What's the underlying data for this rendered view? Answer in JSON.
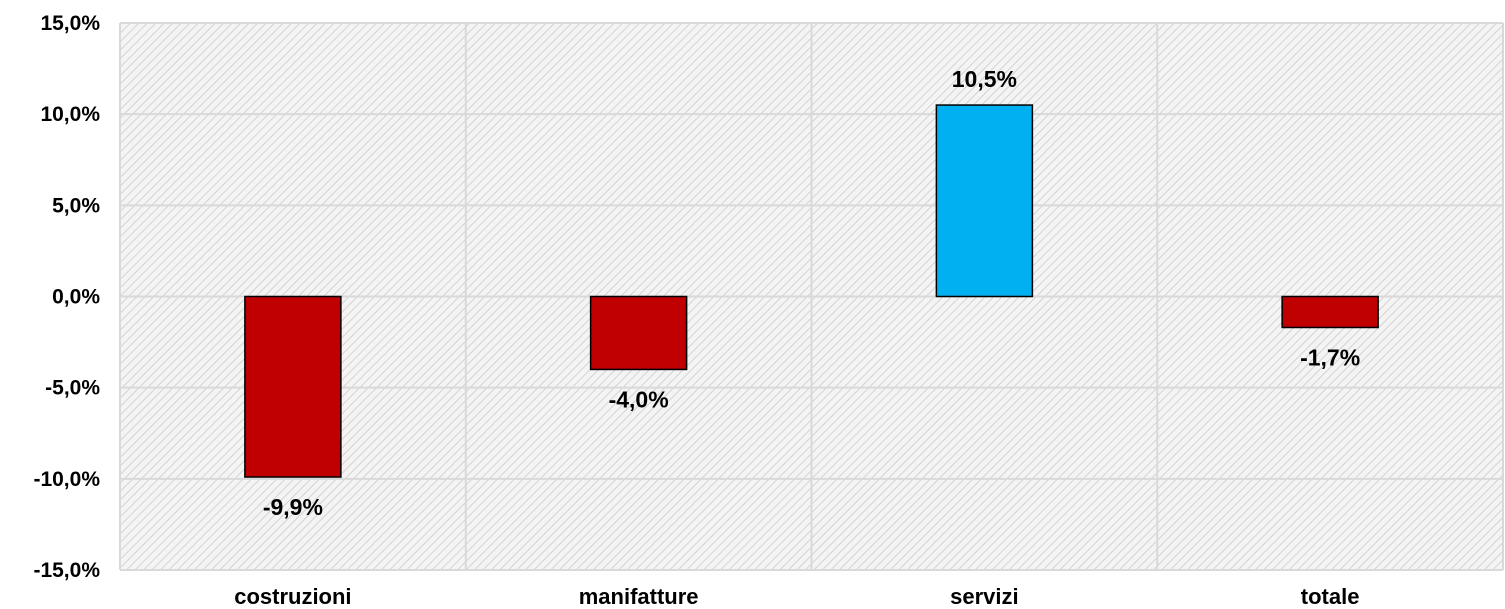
{
  "chart_data": {
    "type": "bar",
    "title": "",
    "xlabel": "",
    "ylabel": "",
    "categories": [
      "costruzioni",
      "manifatture",
      "servizi",
      "totale"
    ],
    "values": [
      -9.9,
      -4.0,
      10.5,
      -1.7
    ],
    "data_labels": [
      "-9,9%",
      "-4,0%",
      "10,5%",
      "-1,7%"
    ],
    "ylim": [
      -15,
      15
    ],
    "y_ticks": [
      15,
      10,
      5,
      0,
      -5,
      -10,
      -15
    ],
    "y_tick_labels": [
      "15,0%",
      "10,0%",
      "5,0%",
      "0,0%",
      "-5,0%",
      "-10,0%",
      "-15,0%"
    ],
    "grid": true,
    "legend": "none",
    "colors": {
      "positive": "#00b0f0",
      "negative": "#c00000",
      "plot_background": "#f2f2f2",
      "hatch": "#d0d0d0",
      "gridline": "#d9d9d9"
    }
  }
}
